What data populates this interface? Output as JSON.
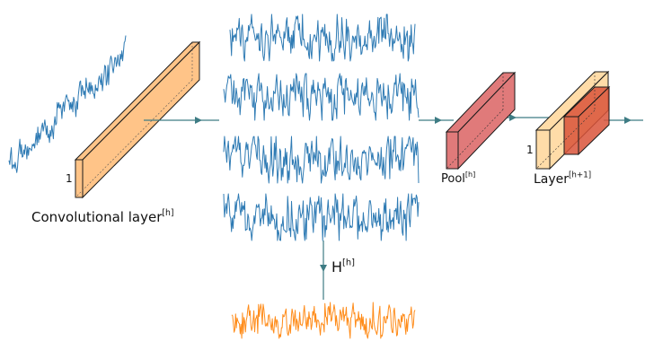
{
  "labels": {
    "conv_layer": "Convolutional layer",
    "conv_sup": "[h]",
    "conv_width": "1",
    "h_label": "H",
    "h_sup": "[h]",
    "pool_label": "Pool",
    "pool_sup": "[h]",
    "next_layer": "Layer",
    "next_sup": "[h+1]",
    "next_width": "1"
  },
  "colors": {
    "signal": "#2f7bb4",
    "output_signal": "#ff8c1a",
    "conv_block": "#ffc488",
    "pool_block": "#e07a7a",
    "next_block_front": "#ffdca8",
    "next_block_inner": "#d9533a",
    "arrow": "#3e7c84",
    "outline": "#1a1a1a"
  },
  "icons": {
    "arrow_head": "filled-triangle-arrowhead"
  }
}
